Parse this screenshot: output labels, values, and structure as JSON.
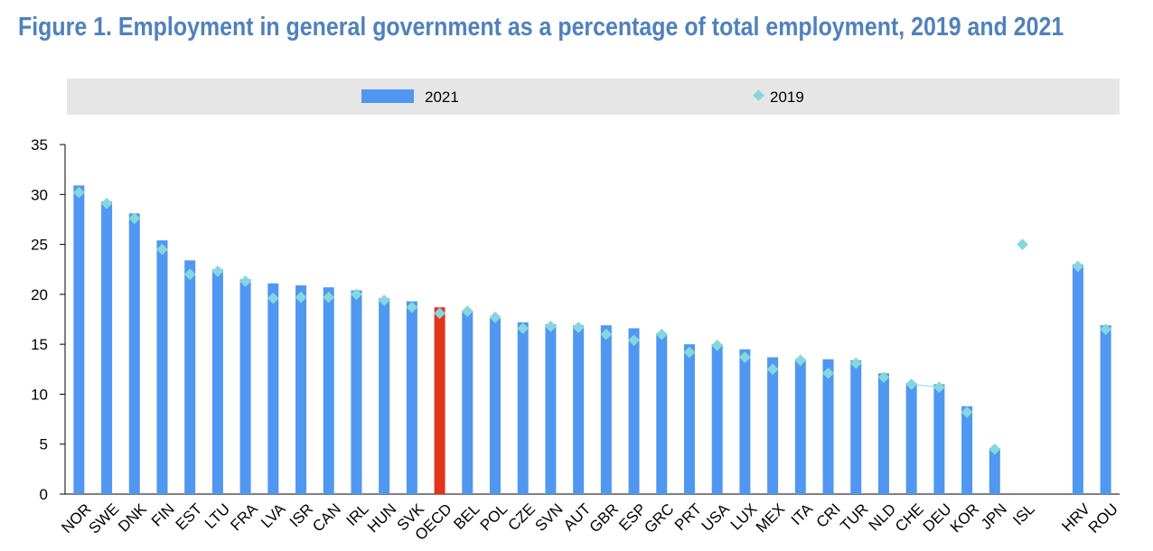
{
  "title": "Figure 1. Employment in general government as a percentage of total employment, 2019 and 2021",
  "chart_data": {
    "type": "bar",
    "title": "Figure 1. Employment in general government as a percentage of total employment, 2019 and 2021",
    "xlabel": "",
    "ylabel": "",
    "ylim": [
      0,
      35
    ],
    "yticks": [
      0,
      5,
      10,
      15,
      20,
      25,
      30,
      35
    ],
    "grid": false,
    "legend_position": "top",
    "colors": {
      "bar": "#4f97f0",
      "highlight": "#e2341c",
      "marker": "#86d6de",
      "legend_band": "#e6e6e6"
    },
    "highlight_category": "OECD",
    "categories": [
      "NOR",
      "SWE",
      "DNK",
      "FIN",
      "EST",
      "LTU",
      "FRA",
      "LVA",
      "ISR",
      "CAN",
      "IRL",
      "HUN",
      "SVK",
      "OECD",
      "BEL",
      "POL",
      "CZE",
      "SVN",
      "AUT",
      "GBR",
      "ESP",
      "GRC",
      "PRT",
      "USA",
      "LUX",
      "MEX",
      "ITA",
      "CRI",
      "TUR",
      "NLD",
      "CHE",
      "DEU",
      "KOR",
      "JPN",
      "ISL",
      "",
      "HRV",
      "ROU"
    ],
    "series": [
      {
        "name": "2021",
        "kind": "bar",
        "values": [
          30.9,
          29.3,
          28.1,
          25.4,
          23.4,
          22.5,
          21.5,
          21.1,
          20.9,
          20.7,
          20.4,
          19.6,
          19.3,
          18.7,
          18.4,
          17.6,
          17.2,
          17.0,
          16.9,
          16.9,
          16.6,
          16.1,
          15.0,
          15.0,
          14.5,
          13.7,
          13.5,
          13.5,
          13.4,
          12.1,
          11.1,
          11.0,
          8.8,
          4.6,
          null,
          null,
          23.0,
          16.9
        ]
      },
      {
        "name": "2019",
        "kind": "marker",
        "values": [
          30.2,
          29.1,
          27.6,
          24.5,
          22.0,
          22.3,
          21.3,
          19.6,
          19.7,
          19.7,
          20.0,
          19.4,
          18.7,
          18.1,
          18.3,
          17.7,
          16.6,
          16.8,
          16.7,
          16.0,
          15.4,
          16.0,
          14.2,
          14.9,
          13.7,
          12.5,
          13.4,
          12.1,
          13.1,
          11.7,
          11.0,
          10.7,
          8.2,
          4.5,
          25.0,
          null,
          22.8,
          16.5
        ]
      }
    ]
  }
}
